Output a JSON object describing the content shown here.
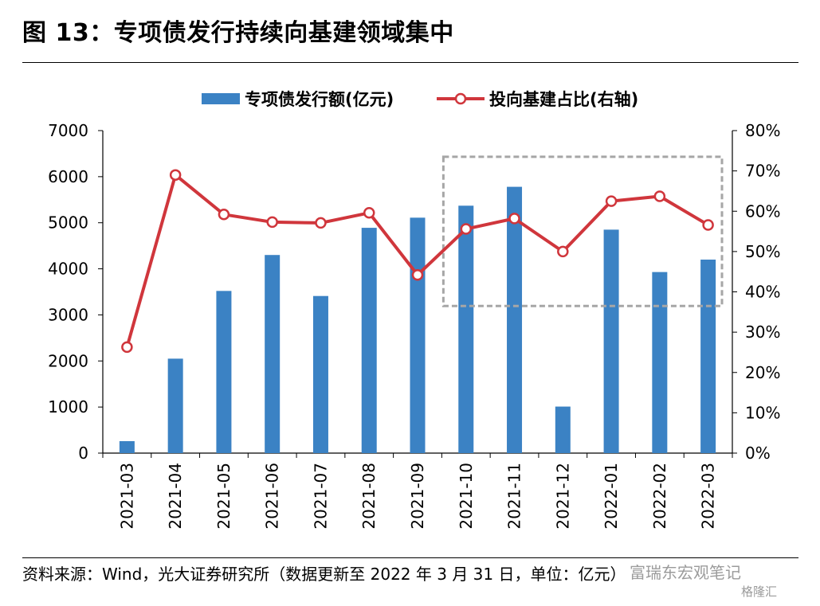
{
  "title": "图 13：专项债发行持续向基建领域集中",
  "source": "资料来源：Wind，光大证券研究所（数据更新至 2022 年 3 月 31 日，单位：亿元）",
  "watermark": "富瑞东宏观笔记",
  "watermark_sub": "格隆汇",
  "colors": {
    "bar": "#3b82c4",
    "line": "#d0363c",
    "highlight_box": "#a6a6a6"
  },
  "chart_data": {
    "type": "bar",
    "categories": [
      "2021-03",
      "2021-04",
      "2021-05",
      "2021-06",
      "2021-07",
      "2021-08",
      "2021-09",
      "2021-10",
      "2021-11",
      "2021-12",
      "2022-01",
      "2022-02",
      "2022-03"
    ],
    "series": [
      {
        "name": "专项债发行额(亿元)",
        "type": "bar",
        "axis": "left",
        "values": [
          260,
          2050,
          3520,
          4300,
          3410,
          4890,
          5110,
          5370,
          5780,
          1010,
          4850,
          3930,
          4200
        ]
      },
      {
        "name": "投向基建占比(右轴)",
        "type": "line",
        "axis": "right",
        "values": [
          26.3,
          69.0,
          59.2,
          57.3,
          57.1,
          59.6,
          44.2,
          55.6,
          58.2,
          50.0,
          62.5,
          63.7,
          56.6
        ]
      }
    ],
    "ylim": [
      0,
      7000
    ],
    "y_ticks": [
      "0",
      "1000",
      "2000",
      "3000",
      "4000",
      "5000",
      "6000",
      "7000"
    ],
    "y2lim": [
      0,
      80
    ],
    "y2_ticks": [
      "0%",
      "10%",
      "20%",
      "30%",
      "40%",
      "50%",
      "60%",
      "70%",
      "80%"
    ],
    "legend_position": "top-center",
    "highlight_region": {
      "from": "2021-10",
      "to": "2022-03",
      "y2_range": [
        36.5,
        73.5
      ]
    }
  }
}
